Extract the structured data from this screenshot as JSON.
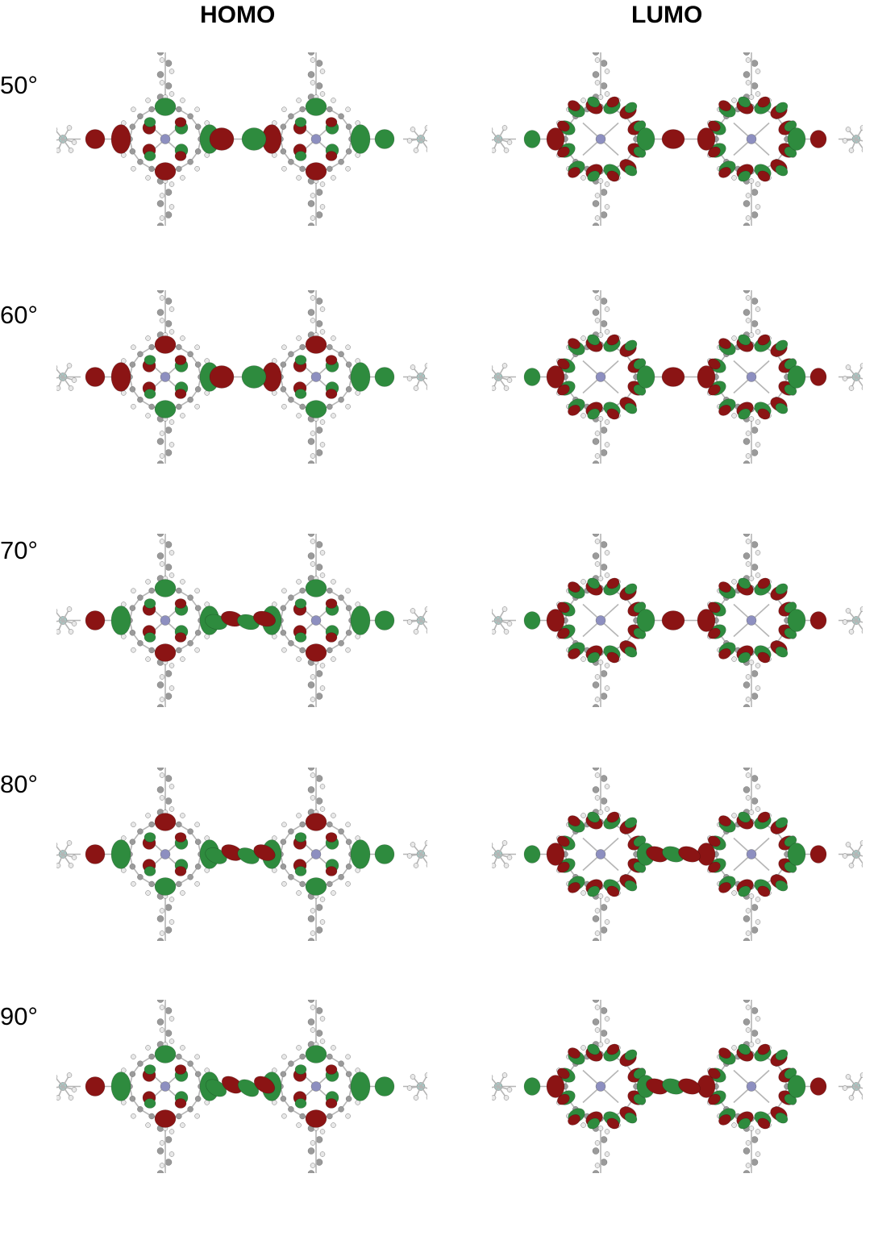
{
  "headers": {
    "homo": "HOMO",
    "lumo": "LUMO"
  },
  "rows": [
    {
      "angle": "50°"
    },
    {
      "angle": "60°"
    },
    {
      "angle": "70°"
    },
    {
      "angle": "80°"
    },
    {
      "angle": "90°"
    }
  ],
  "colors": {
    "lobe_positive": "#8b1414",
    "lobe_negative": "#2e8b3e",
    "atom_h": "#e8e8e8",
    "atom_c": "#9a9a9a",
    "atom_metal": "#8d8fc0",
    "atom_si": "#a6c8c4",
    "bond": "#b5b5b5"
  }
}
